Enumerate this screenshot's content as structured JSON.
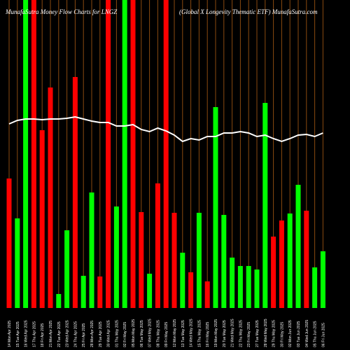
{
  "chart_data": {
    "type": "bar",
    "title": "MunafaSutra  Money Flow  Charts for LNGZ",
    "subtitle": "(Global X  Longevity Thematic ETF) MunafaSutra.com",
    "categories": [
      "14 Mon Apr 2025",
      "15 Tue Apr 2025",
      "16 Wed Apr 2025",
      "17 Thu Apr 2025",
      "18 Fri Apr 2025",
      "21 Mon Apr 2025",
      "22 Tue Apr 2025",
      "23 Wed Apr 2025",
      "24 Thu Apr 2025",
      "25 Fri Apr 2025",
      "28 Mon Apr 2025",
      "29 Tue Apr 2025",
      "30 Wed Apr 2025",
      "01 Thu May 2025",
      "02 Fri May 2025",
      "05 Mon May 2025",
      "06 Tue May 2025",
      "07 Wed May 2025",
      "08 Thu May 2025",
      "09 Fri May 2025",
      "12 Mon May 2025",
      "13 Tue May 2025",
      "14 Wed May 2025",
      "15 Thu May 2025",
      "16 Fri May 2025",
      "19 Mon May 2025",
      "20 Tue May 2025",
      "21 Wed May 2025",
      "22 Thu May 2025",
      "23 Fri May 2025",
      "27 Tue May 2025",
      "28 Wed May 2025",
      "29 Thu May 2025",
      "30 Fri May 2025",
      "02 Mon Jun 2025",
      "03 Tue Jun 2025",
      "04 Wed Jun 2025",
      "05 Thu Jun 2025",
      "06 Fri Jun 2025"
    ],
    "values": [
      185,
      128,
      440,
      440,
      254,
      315,
      20,
      111,
      330,
      46,
      165,
      45,
      440,
      145,
      440,
      440,
      137,
      49,
      178,
      440,
      136,
      79,
      51,
      136,
      38,
      287,
      133,
      72,
      60,
      60,
      55,
      293,
      102,
      125,
      135,
      176,
      139,
      58,
      81
    ],
    "colors": [
      "#ff0000",
      "#00ff00",
      "#00ff00",
      "#ff0000",
      "#ff0000",
      "#ff0000",
      "#00ff00",
      "#00ff00",
      "#ff0000",
      "#00ff00",
      "#00ff00",
      "#ff0000",
      "#ff0000",
      "#00ff00",
      "#00ff00",
      "#ff0000",
      "#ff0000",
      "#00ff00",
      "#ff0000",
      "#ff0000",
      "#ff0000",
      "#00ff00",
      "#ff0000",
      "#00ff00",
      "#ff0000",
      "#00ff00",
      "#00ff00",
      "#00ff00",
      "#00ff00",
      "#00ff00",
      "#00ff00",
      "#00ff00",
      "#ff0000",
      "#ff0000",
      "#00ff00",
      "#00ff00",
      "#ff0000",
      "#00ff00",
      "#00ff00"
    ],
    "line_values": [
      263,
      268,
      270,
      270,
      269,
      270,
      270,
      271,
      273,
      270,
      267,
      265,
      265,
      260,
      260,
      262,
      255,
      252,
      257,
      253,
      247,
      238,
      242,
      240,
      245,
      245,
      250,
      250,
      252,
      250,
      245,
      247,
      242,
      238,
      242,
      247,
      248,
      245,
      250
    ],
    "line_color": "#ffffff",
    "ylim": [
      0,
      440
    ]
  }
}
